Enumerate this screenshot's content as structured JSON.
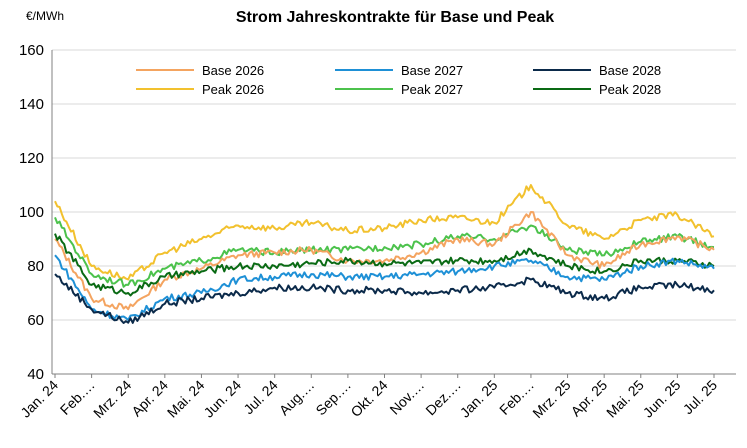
{
  "chart_data": {
    "type": "line",
    "title": "Strom Jahreskontrakte für Base und Peak",
    "unit_label": "€/MWh",
    "xlabel": "",
    "ylabel": "",
    "ylim": [
      40,
      160
    ],
    "y_ticks": [
      40,
      60,
      80,
      100,
      120,
      140,
      160
    ],
    "grid": "horizontal",
    "legend_position": "top",
    "x": [
      "Jan. 24",
      "Feb. 24",
      "Mrz. 24",
      "Apr. 24",
      "Mai. 24",
      "Jun. 24",
      "Jul. 24",
      "Aug. 24",
      "Sep. 24",
      "Okt. 24",
      "Nov. 24",
      "Dez. 24",
      "Jan. 25",
      "Feb. 25",
      "Mrz. 25",
      "Apr. 25",
      "Mai. 25",
      "Jun. 25",
      "Jul. 25"
    ],
    "x_tick_labels": [
      "Jan. 24",
      "Feb.…",
      "Mrz. 24",
      "Apr. 24",
      "Mai. 24",
      "Jun. 24",
      "Jul. 24",
      "Aug.…",
      "Sep.…",
      "Okt. 24",
      "Nov.…",
      "Dez.…",
      "Jan. 25",
      "Feb.…",
      "Mrz. 25",
      "Apr. 25",
      "Mai. 25",
      "Jun. 25",
      "Jul. 25"
    ],
    "series": [
      {
        "name": "Base 2026",
        "color": "#F4A460",
        "values": [
          90,
          68,
          64,
          75,
          79,
          84,
          85,
          86,
          82,
          82,
          85,
          90,
          88,
          100,
          84,
          80,
          88,
          91,
          86
        ]
      },
      {
        "name": "Base 2027",
        "color": "#1E90D6",
        "values": [
          84,
          64,
          60,
          68,
          70,
          75,
          76,
          77,
          76,
          76,
          77,
          78,
          80,
          82,
          76,
          75,
          80,
          82,
          79
        ]
      },
      {
        "name": "Base 2028",
        "color": "#0B2A4A",
        "values": [
          77,
          64,
          59,
          66,
          68,
          70,
          72,
          72,
          71,
          71,
          70,
          71,
          72,
          75,
          70,
          68,
          72,
          73,
          71
        ]
      },
      {
        "name": "Peak 2026",
        "color": "#F2C12E",
        "values": [
          104,
          80,
          75,
          85,
          90,
          95,
          94,
          96,
          93,
          94,
          97,
          98,
          96,
          110,
          95,
          90,
          97,
          99,
          91
        ]
      },
      {
        "name": "Peak 2027",
        "color": "#4CC24C",
        "values": [
          98,
          77,
          73,
          79,
          82,
          86,
          85,
          86,
          86,
          87,
          88,
          91,
          90,
          95,
          86,
          84,
          89,
          91,
          87
        ]
      },
      {
        "name": "Peak 2028",
        "color": "#0A6A14",
        "values": [
          92,
          73,
          70,
          76,
          78,
          80,
          80,
          81,
          82,
          81,
          81,
          82,
          82,
          86,
          80,
          78,
          82,
          82,
          80
        ]
      }
    ]
  }
}
